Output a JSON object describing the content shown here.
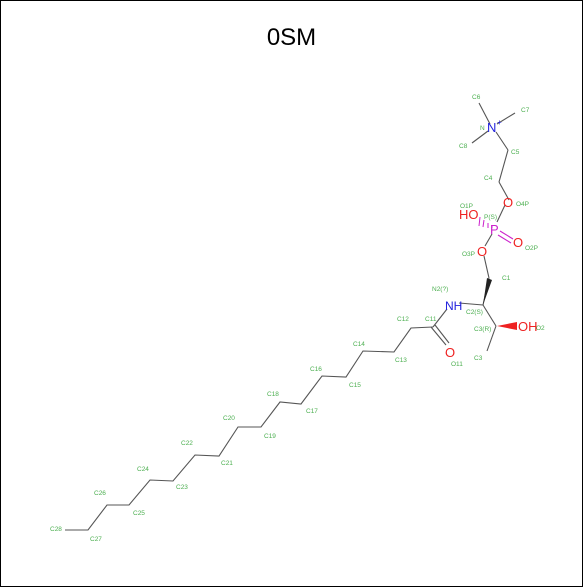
{
  "title": "0SM",
  "colors": {
    "carbon": "#4caf50",
    "nitrogen": "#2222dd",
    "oxygen": "#ee2222",
    "phosphorus": "#cc22cc",
    "bond": "#555555"
  },
  "atoms": {
    "N_plus": "N",
    "N_plus_charge": "+",
    "N_lbl": "N",
    "O4P": "O",
    "O4P_lbl": "O4P",
    "P": "P",
    "P_lbl": "P(S)",
    "HO": "HO",
    "O1P_lbl": "O1P",
    "O2P": "O",
    "O2P_lbl": "O2P",
    "O3P": "O",
    "O3P_lbl": "O3P",
    "NH": "NH",
    "N2_lbl": "N2(?)",
    "OH": "OH",
    "O2_lbl": "O2",
    "O11": "O",
    "O11_lbl": "O11"
  },
  "labels": {
    "C6": "C6",
    "C7": "C7",
    "C8": "C8",
    "C5": "C5",
    "C4": "C4",
    "C1": "C1",
    "C2S": "C2(S)",
    "C3R": "C3(R)",
    "C3": "C3",
    "C11": "C11",
    "C12": "C12",
    "C13": "C13",
    "C14": "C14",
    "C15": "C15",
    "C16": "C16",
    "C17": "C17",
    "C18": "C18",
    "C19": "C19",
    "C20": "C20",
    "C21": "C21",
    "C22": "C22",
    "C23": "C23",
    "C24": "C24",
    "C25": "C25",
    "C26": "C26",
    "C27": "C27",
    "C28": "C28"
  }
}
